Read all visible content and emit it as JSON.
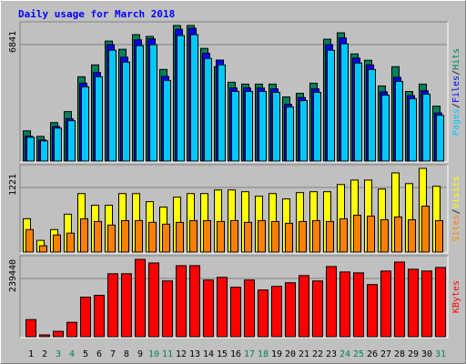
{
  "chart_data": [
    {
      "type": "bar",
      "title": "Daily usage for March 2018",
      "legend_separator": "/",
      "ylim": [
        0,
        6841
      ],
      "yticks": [
        6841
      ],
      "series": [
        {
          "name": "Hits",
          "color": "#00805c",
          "values": [
            1525,
            1248,
            1941,
            2496,
            4253,
            4854,
            6055,
            5640,
            6379,
            6287,
            4622,
            6841,
            6841,
            5686,
            4761,
            3975,
            3883,
            3883,
            3883,
            3236,
            3421,
            3929,
            6148,
            6471,
            5408,
            5085,
            3790,
            4761,
            3513,
            3883,
            2773
          ]
        },
        {
          "name": "Files",
          "color": "#0000ff",
          "values": [
            1262,
            1068,
            1747,
            2136,
            3931,
            4465,
            5873,
            5242,
            6115,
            6164,
            4271,
            6650,
            6698,
            5436,
            5096,
            3689,
            3689,
            3689,
            3640,
            2863,
            3204,
            3640,
            5873,
            6213,
            5193,
            4853,
            3494,
            4222,
            3300,
            3543,
            2427
          ]
        },
        {
          "name": "Pages",
          "color": "#00c8ff",
          "values": [
            1202,
            1017,
            1664,
            2034,
            3744,
            4252,
            5593,
            4992,
            5824,
            5870,
            4068,
            6333,
            6379,
            5177,
            4853,
            3513,
            3513,
            3513,
            3467,
            2727,
            3051,
            3467,
            5593,
            5917,
            4946,
            4622,
            3328,
            4021,
            3143,
            3374,
            2311
          ]
        }
      ]
    },
    {
      "type": "bar",
      "legend_separator": "/",
      "ylim": [
        0,
        1221
      ],
      "yticks": [
        1221
      ],
      "series": [
        {
          "name": "Visits",
          "color": "#ffff00",
          "values": [
            486,
            171,
            328,
            552,
            853,
            683,
            683,
            853,
            853,
            735,
            656,
            801,
            853,
            853,
            906,
            906,
            880,
            814,
            853,
            775,
            867,
            880,
            880,
            985,
            1050,
            1050,
            919,
            1155,
            998,
            1221,
            959
          ]
        },
        {
          "name": "Sites",
          "color": "#ff8000",
          "values": [
            328,
            92,
            249,
            276,
            486,
            446,
            394,
            459,
            459,
            433,
            407,
            433,
            459,
            459,
            446,
            459,
            433,
            459,
            446,
            420,
            446,
            459,
            446,
            486,
            538,
            525,
            472,
            512,
            472,
            670,
            459
          ]
        }
      ]
    },
    {
      "type": "bar",
      "ylim": [
        0,
        239440
      ],
      "yticks": [
        239440
      ],
      "categories": [
        "1",
        "2",
        "3",
        "4",
        "5",
        "6",
        "7",
        "8",
        "9",
        "10",
        "11",
        "12",
        "13",
        "14",
        "15",
        "16",
        "17",
        "18",
        "19",
        "20",
        "21",
        "22",
        "23",
        "24",
        "25",
        "26",
        "27",
        "28",
        "29",
        "30",
        "31"
      ],
      "category_colors": [
        "#000000",
        "#000000",
        "#00805c",
        "#00805c",
        "#000000",
        "#000000",
        "#000000",
        "#000000",
        "#000000",
        "#00805c",
        "#00805c",
        "#000000",
        "#000000",
        "#000000",
        "#000000",
        "#000000",
        "#00805c",
        "#00805c",
        "#000000",
        "#000000",
        "#000000",
        "#000000",
        "#000000",
        "#00805c",
        "#00805c",
        "#000000",
        "#000000",
        "#000000",
        "#000000",
        "#000000",
        "#00805c"
      ],
      "series": [
        {
          "name": "KBytes",
          "color": "#ff0000",
          "values": [
            52900,
            5568,
            16705,
            44547,
            122504,
            128072,
            194893,
            194893,
            239440,
            228303,
            172619,
            219950,
            219950,
            175404,
            183757,
            153131,
            175404,
            144778,
            155915,
            167051,
            189325,
            172619,
            217166,
            200460,
            197676,
            161483,
            203244,
            231087,
            208813,
            203244,
            214382
          ]
        }
      ]
    }
  ]
}
